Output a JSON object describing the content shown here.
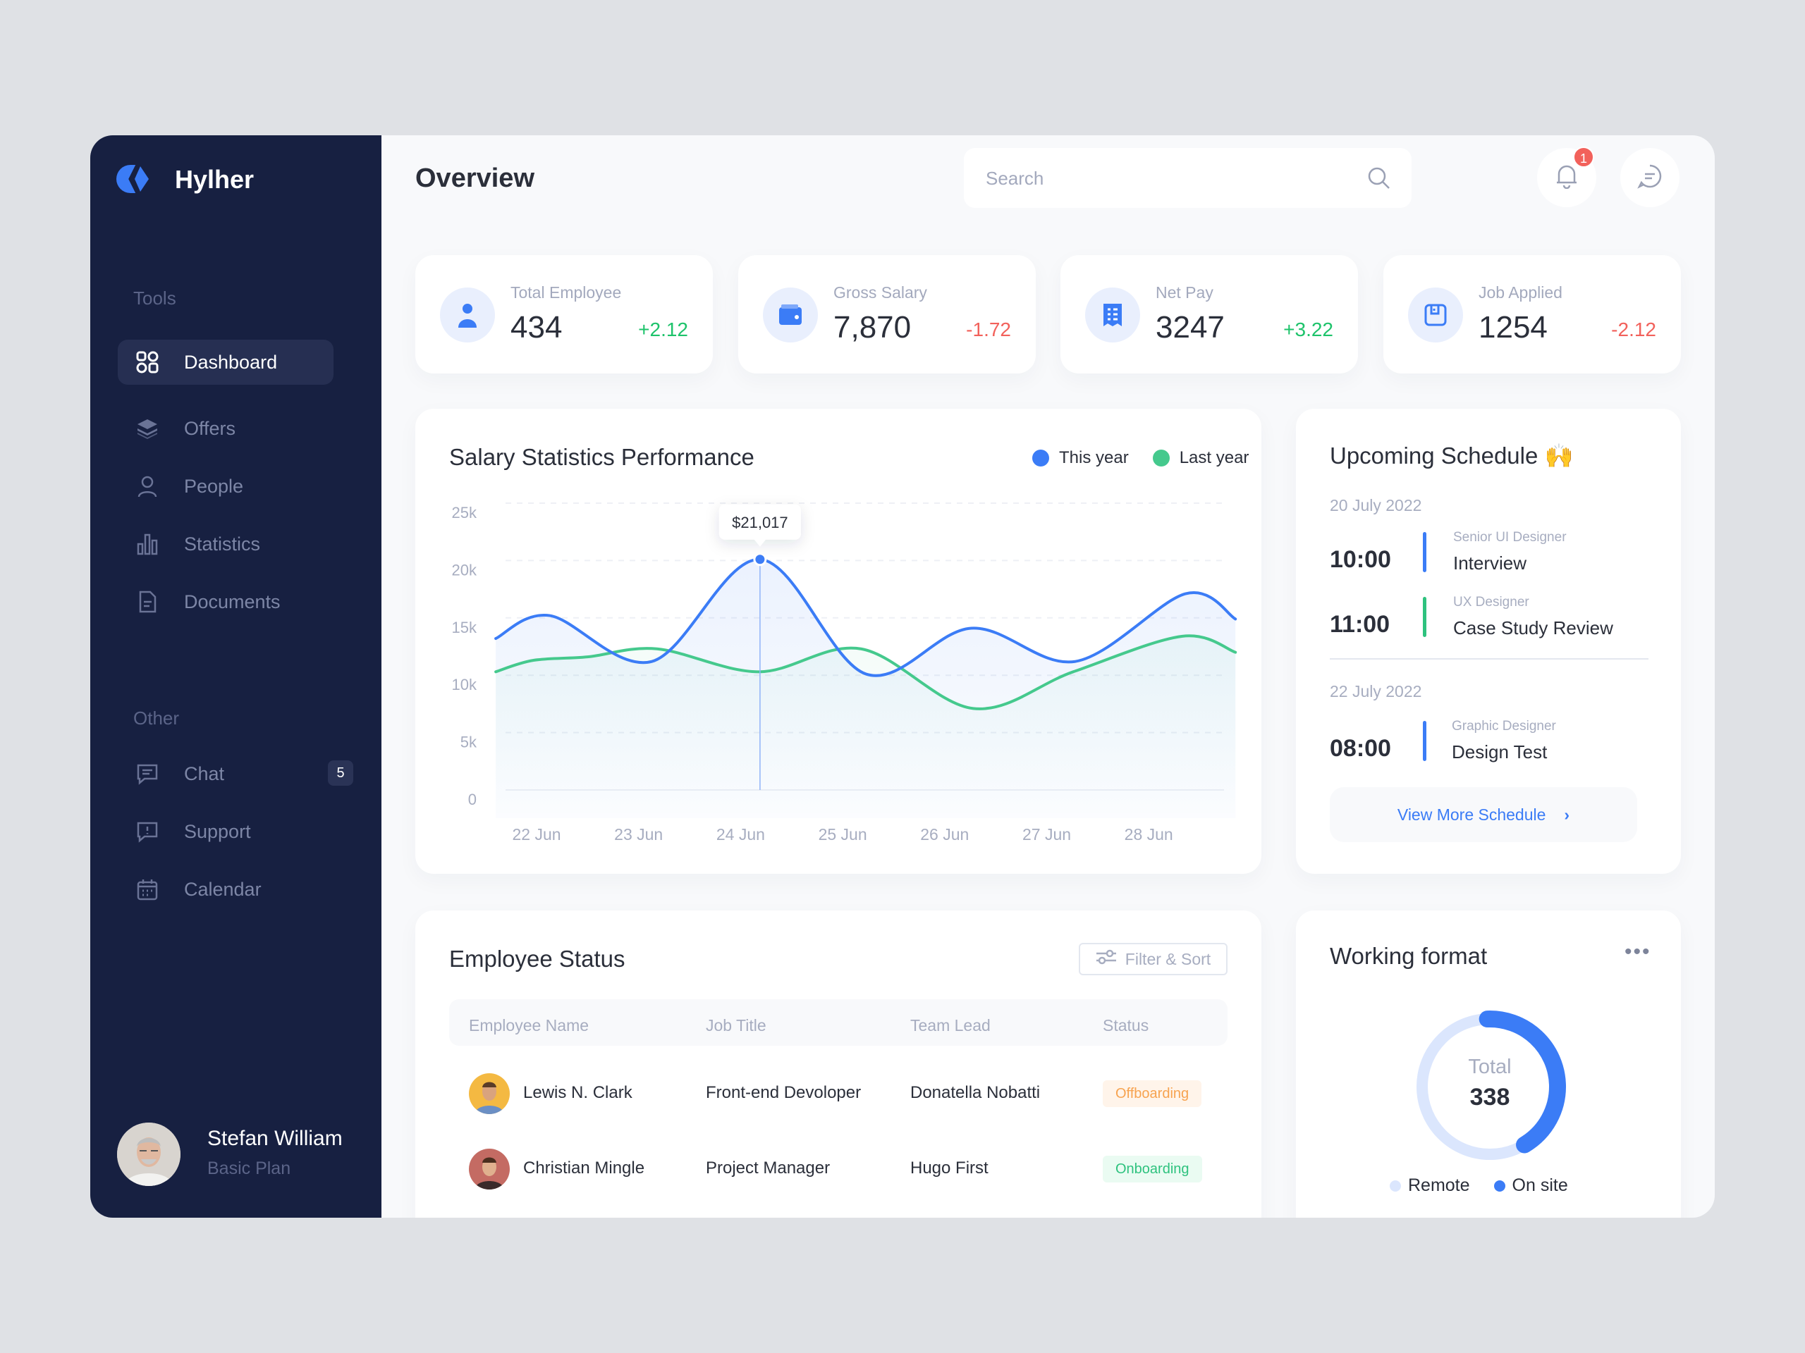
{
  "brand": {
    "name": "Hylher",
    "accent": "#3b7cf6"
  },
  "sidebar": {
    "sections": [
      {
        "label": "Tools"
      },
      {
        "label": "Other"
      }
    ],
    "items": [
      {
        "label": "Dashboard",
        "icon": "grid-icon",
        "active": true
      },
      {
        "label": "Offers",
        "icon": "layers-icon"
      },
      {
        "label": "People",
        "icon": "user-icon"
      },
      {
        "label": "Statistics",
        "icon": "bar-chart-icon"
      },
      {
        "label": "Documents",
        "icon": "document-icon"
      },
      {
        "label": "Chat",
        "icon": "chat-icon",
        "badge": "5"
      },
      {
        "label": "Support",
        "icon": "support-icon"
      },
      {
        "label": "Calendar",
        "icon": "calendar-icon"
      }
    ],
    "user": {
      "name": "Stefan William",
      "plan": "Basic Plan"
    }
  },
  "header": {
    "title": "Overview",
    "search_placeholder": "Search",
    "notification_count": "1"
  },
  "stats": [
    {
      "label": "Total Employee",
      "value": "434",
      "delta": "+2.12",
      "trend": "up",
      "icon": "user-icon"
    },
    {
      "label": "Gross Salary",
      "value": "7,870",
      "delta": "-1.72",
      "trend": "down",
      "icon": "wallet-icon"
    },
    {
      "label": "Net Pay",
      "value": "3247",
      "delta": "+3.22",
      "trend": "up",
      "icon": "receipt-icon"
    },
    {
      "label": "Job Applied",
      "value": "1254",
      "delta": "-2.12",
      "trend": "down",
      "icon": "save-icon"
    }
  ],
  "salary_chart": {
    "title": "Salary Statistics Performance",
    "tooltip": "$21,017",
    "chart_data": {
      "type": "area",
      "x_ticks": [
        "22 Jun",
        "23 Jun",
        "24 Jun",
        "25 Jun",
        "26 Jun",
        "27 Jun",
        "28 Jun"
      ],
      "y_ticks": [
        "0",
        "5k",
        "10k",
        "15k",
        "20k",
        "25k"
      ],
      "ylim": [
        0,
        25000
      ],
      "grid": true,
      "legend": "top-right",
      "series": [
        {
          "name": "This year",
          "color": "#3b7cf6",
          "points": [
            [
              21.6,
              13200
            ],
            [
              22.13,
              15200
            ],
            [
              23.13,
              11200
            ],
            [
              24.19,
              20100
            ],
            [
              25.23,
              10100
            ],
            [
              26.26,
              14100
            ],
            [
              27.28,
              11200
            ],
            [
              28.36,
              17100
            ],
            [
              28.85,
              14900
            ]
          ]
        },
        {
          "name": "Last year",
          "color": "#45c98d",
          "points": [
            [
              21.6,
              10300
            ],
            [
              21.97,
              11300
            ],
            [
              22.5,
              11600
            ],
            [
              23.18,
              12300
            ],
            [
              24.18,
              10300
            ],
            [
              25.18,
              12300
            ],
            [
              26.28,
              7100
            ],
            [
              27.26,
              10300
            ],
            [
              28.33,
              13400
            ],
            [
              28.85,
              12000
            ]
          ]
        }
      ]
    }
  },
  "schedule": {
    "title": "Upcoming Schedule 🙌",
    "days": [
      {
        "date": "20 July 2022",
        "events": [
          {
            "time": "10:00",
            "role": "Senior UI Designer",
            "title": "Interview",
            "color": "#3b7cf6"
          },
          {
            "time": "11:00",
            "role": "UX Designer",
            "title": "Case Study Review",
            "color": "#2ec27e"
          }
        ]
      },
      {
        "date": "22 July 2022",
        "events": [
          {
            "time": "08:00",
            "role": "Graphic Designer",
            "title": "Design Test",
            "color": "#3b7cf6"
          }
        ]
      }
    ],
    "view_more": "View More Schedule"
  },
  "employee_status": {
    "title": "Employee Status",
    "filter_label": "Filter & Sort",
    "columns": [
      "Employee Name",
      "Job Title",
      "Team Lead",
      "Status"
    ],
    "rows": [
      {
        "name": "Lewis N. Clark",
        "job": "Front-end Devoloper",
        "lead": "Donatella Nobatti",
        "status": "Offboarding"
      },
      {
        "name": "Christian Mingle",
        "job": "Project Manager",
        "lead": "Hugo First",
        "status": "Onboarding"
      }
    ]
  },
  "working_format": {
    "title": "Working format",
    "total_label": "Total",
    "total": "338",
    "onsite_fraction": 0.42,
    "legend": [
      {
        "label": "Remote",
        "color": "#dbe6fd"
      },
      {
        "label": "On site",
        "color": "#3b7cf6"
      }
    ]
  }
}
